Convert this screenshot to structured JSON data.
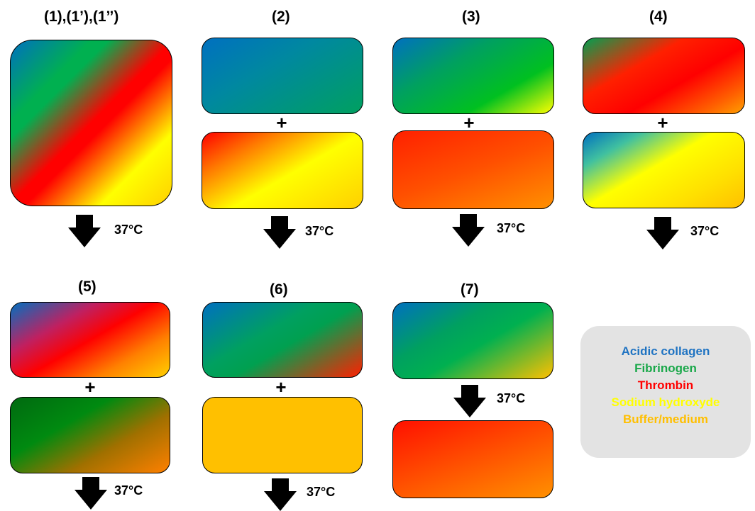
{
  "labels": {
    "c1": "(1),(1’),(1’’)",
    "c2": "(2)",
    "c3": "(3)",
    "c4": "(4)",
    "c5": "(5)",
    "c6": "(6)",
    "c7": "(7)"
  },
  "plus_symbol": "+",
  "temperature": "37°C",
  "legend": {
    "items": [
      {
        "label": "Acidic collagen",
        "color": "#1f73c2"
      },
      {
        "label": "Fibrinogen",
        "color": "#1aa84a"
      },
      {
        "label": "Thrombin",
        "color": "#ff0000"
      },
      {
        "label": "Sodium hydroxyde",
        "color": "#ffff00"
      },
      {
        "label": "Buffer/medium",
        "color": "#ffbf00"
      }
    ]
  },
  "colors": {
    "acidic_collagen": "#0070c0",
    "fibrinogen": "#00b050",
    "thrombin": "#ff0000",
    "sodium_hydroxyde": "#ffff00",
    "buffer_medium": "#ffc000",
    "dark_green": "#007a00"
  }
}
